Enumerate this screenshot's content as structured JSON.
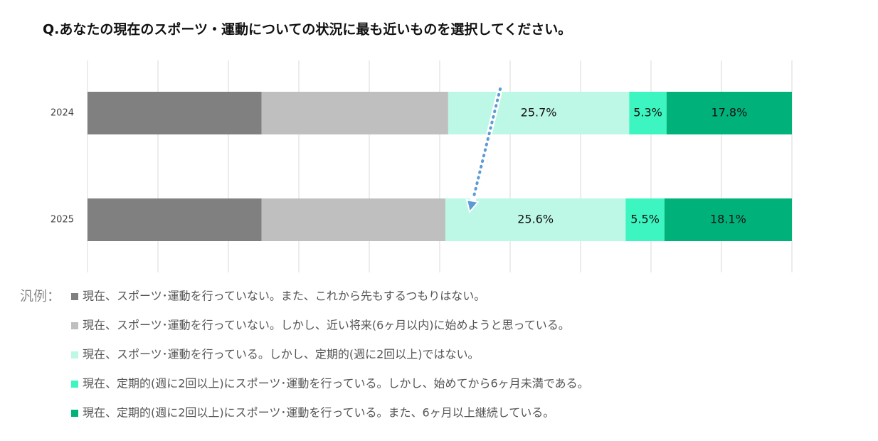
{
  "chart_data": {
    "type": "stacked-bar-horizontal",
    "title": "Q.あなたの現在のスポーツ・運動についての状況に最も近いものを選択してください。",
    "legend_title": "汎例：",
    "categories": [
      "2024",
      "2025"
    ],
    "series": [
      {
        "name": "現在、スポーツ･運動を行っていない。また、これから先もするつもりはない。",
        "color": "#808080",
        "values": [
          24.7,
          24.7
        ],
        "value_labels": [
          null,
          null
        ]
      },
      {
        "name": "現在、スポーツ･運動を行っていない。しかし、近い将来(6ヶ月以内)に始めようと思っている。",
        "color": "#bfbfbf",
        "values": [
          26.5,
          26.1
        ],
        "value_labels": [
          null,
          null
        ]
      },
      {
        "name": "現在、スポーツ･運動を行っている。しかし、定期的(週に2回以上)ではない。",
        "color": "#bdf7e6",
        "values": [
          25.7,
          25.6
        ],
        "value_labels": [
          "25.7%",
          "25.6%"
        ]
      },
      {
        "name": "現在、定期的(週に2回以上)にスポーツ･運動を行っている。しかし、始めてから6ヶ月未満である。",
        "color": "#3df5c0",
        "values": [
          5.3,
          5.5
        ],
        "value_labels": [
          "5.3%",
          "5.5%"
        ]
      },
      {
        "name": "現在、定期的(週に2回以上)にスポーツ･運動を行っている。また、6ヶ月以上継続している。",
        "color": "#00b27a",
        "values": [
          17.8,
          18.1
        ],
        "value_labels": [
          "17.8%",
          "18.1%"
        ]
      }
    ],
    "xlim": [
      0,
      100
    ],
    "xticks": [
      0,
      10,
      20,
      30,
      40,
      50,
      60,
      70,
      80,
      90,
      100
    ],
    "grid": true
  }
}
